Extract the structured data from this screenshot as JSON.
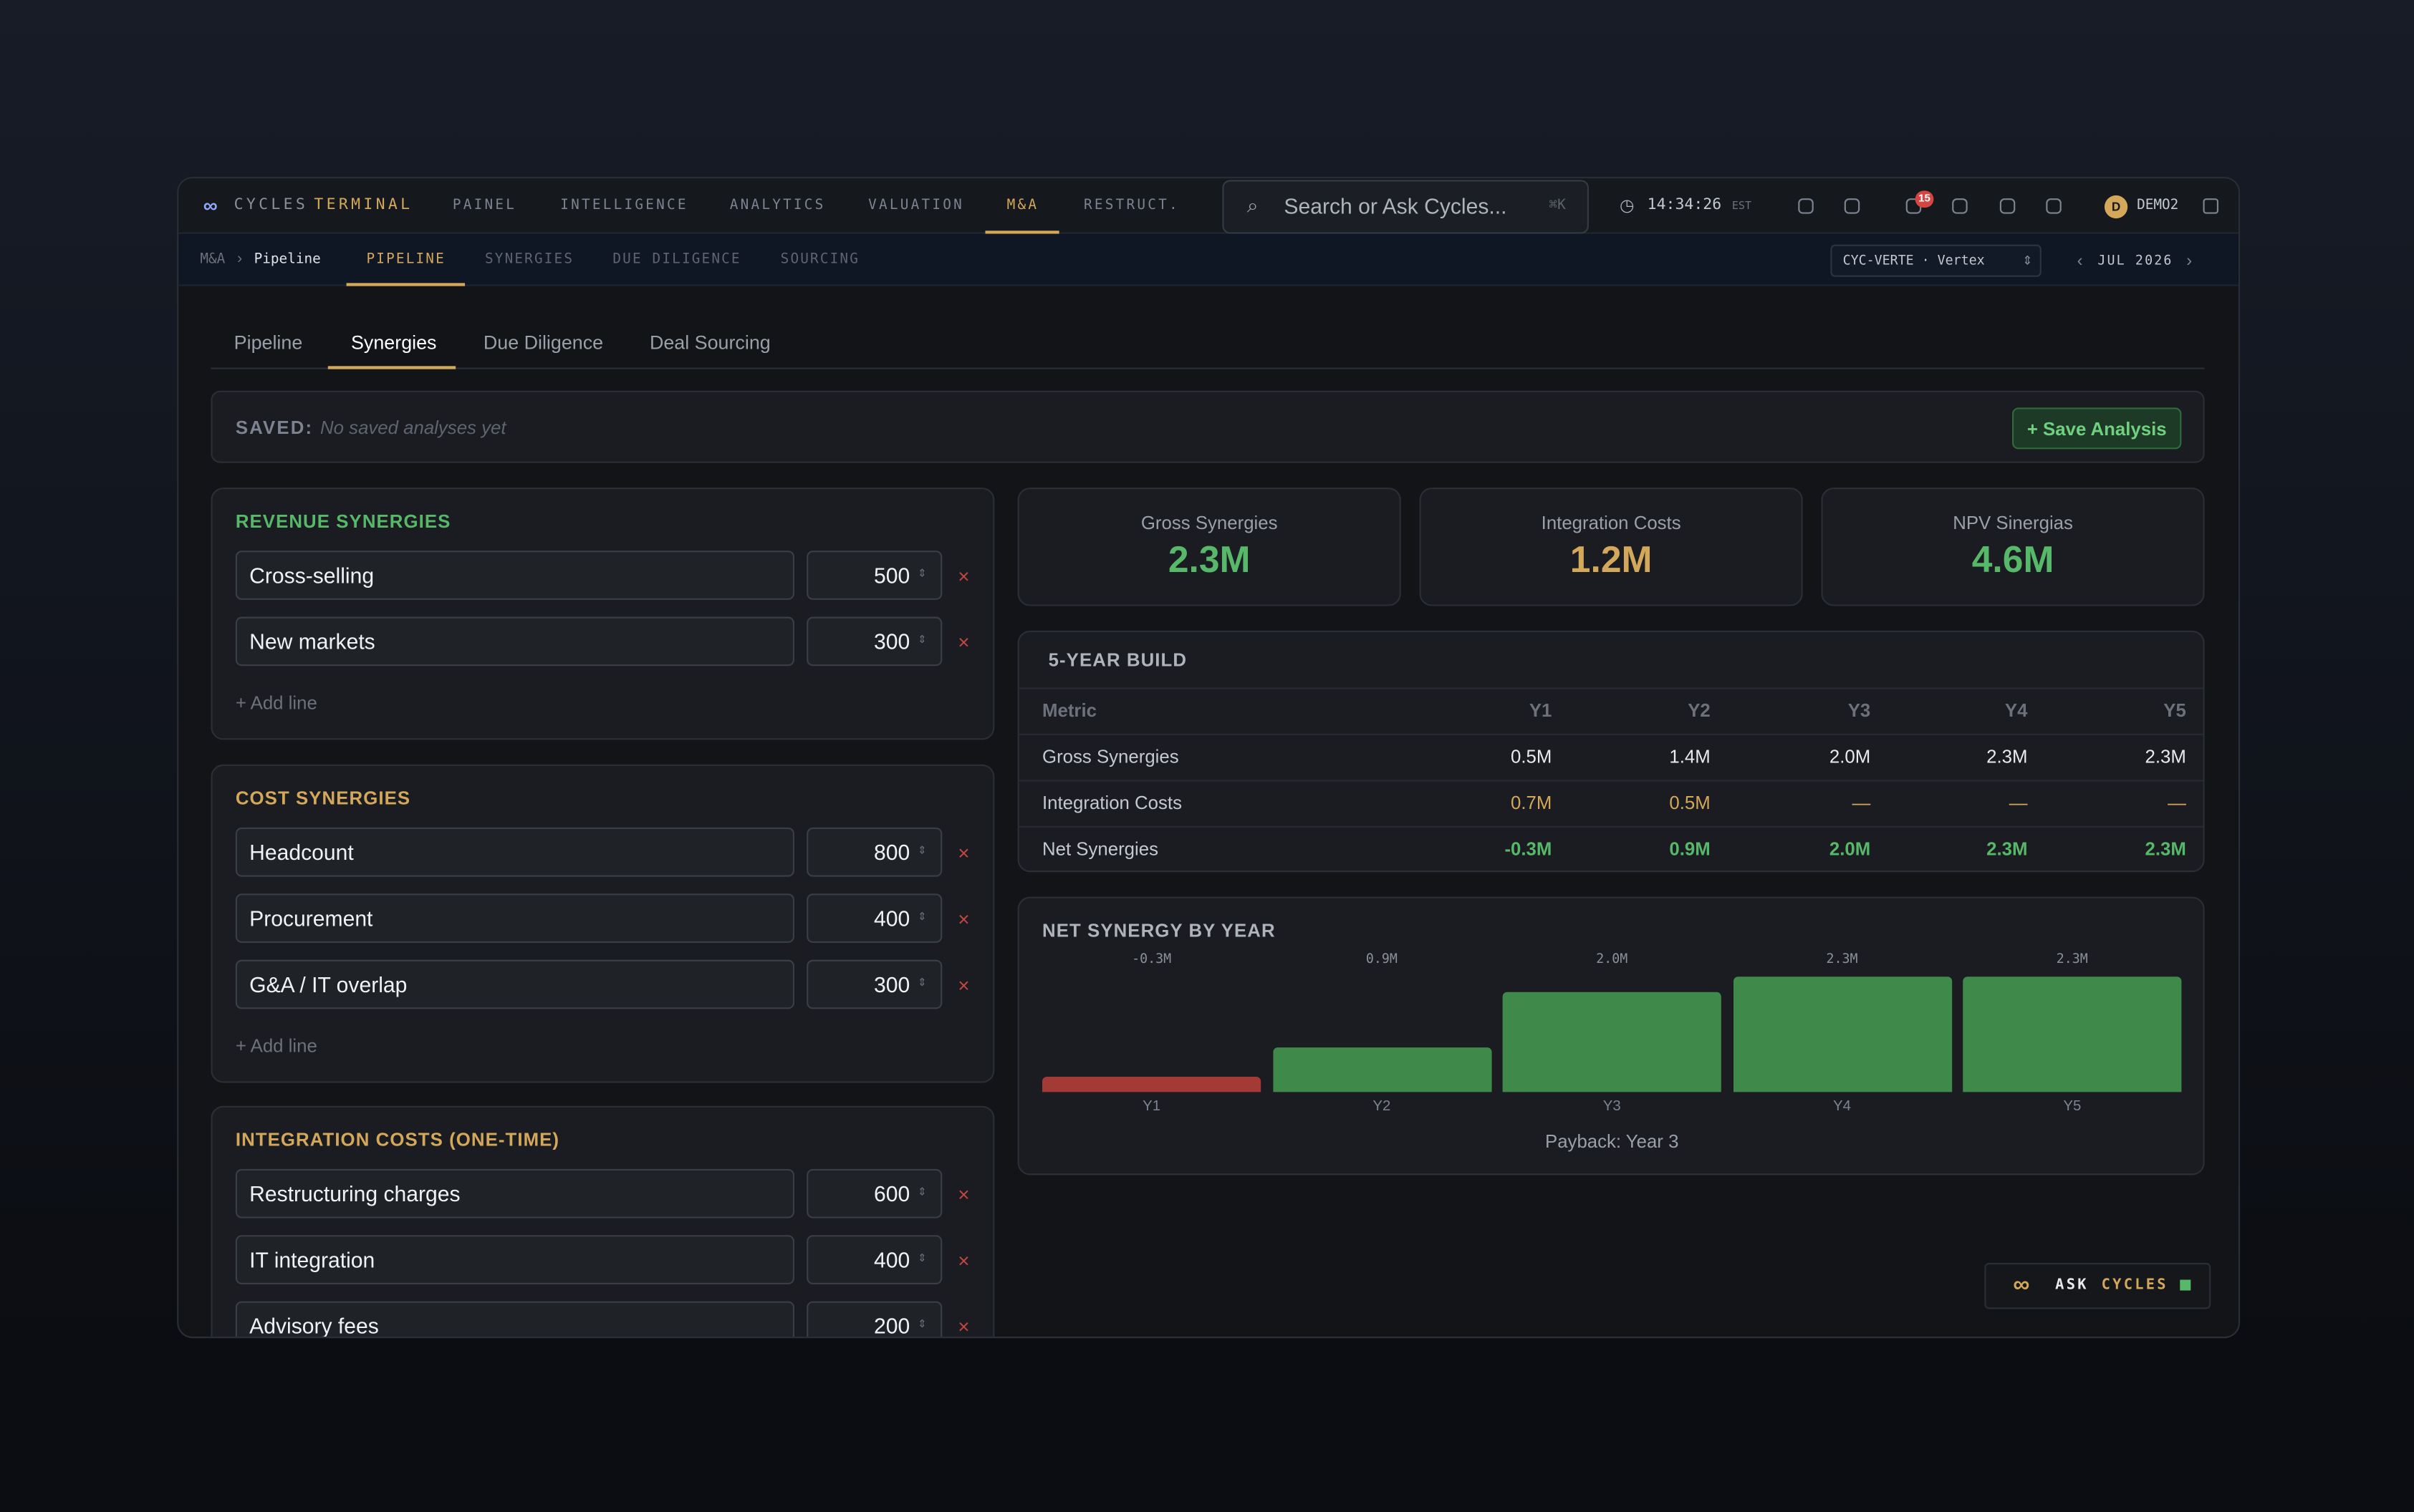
{
  "brand": {
    "name": "CYCLES",
    "accent": "TERMINAL"
  },
  "nav_items": [
    "PAINEL",
    "INTELLIGENCE",
    "ANALYTICS",
    "VALUATION",
    "M&A",
    "RESTRUCT."
  ],
  "nav_active": 4,
  "search": {
    "placeholder": "Search or Ask Cycles...",
    "shortcut": "⌘K"
  },
  "clock": {
    "time": "14:34:26",
    "zone": "EST"
  },
  "notifications": 15,
  "user": {
    "initial": "D",
    "name": "DEMO2"
  },
  "breadcrumb": [
    "M&A",
    "Pipeline"
  ],
  "sub_tabs": [
    "PIPELINE",
    "SYNERGIES",
    "DUE DILIGENCE",
    "SOURCING"
  ],
  "sub_active": 0,
  "entity": "CYC-VERTE · Vertex",
  "period": "JUL 2026",
  "tabs": [
    "Pipeline",
    "Synergies",
    "Due Diligence",
    "Deal Sourcing"
  ],
  "tab_active": 1,
  "saved": {
    "label": "SAVED:",
    "empty": "No saved analyses yet",
    "button": "+ Save Analysis"
  },
  "sections": [
    {
      "title": "REVENUE SYNERGIES",
      "color": "#56b868",
      "lines": [
        {
          "name": "Cross-selling",
          "amount": 500
        },
        {
          "name": "New markets",
          "amount": 300
        }
      ],
      "add": "+ Add line"
    },
    {
      "title": "COST SYNERGIES",
      "color": "#d4a85a",
      "lines": [
        {
          "name": "Headcount",
          "amount": 800
        },
        {
          "name": "Procurement",
          "amount": 400
        },
        {
          "name": "G&A / IT overlap",
          "amount": 300
        }
      ],
      "add": "+ Add line"
    },
    {
      "title": "INTEGRATION COSTS (ONE-TIME)",
      "color": "#d4a85a",
      "lines": [
        {
          "name": "Restructuring charges",
          "amount": 600
        },
        {
          "name": "IT integration",
          "amount": 400
        },
        {
          "name": "Advisory fees",
          "amount": 200
        }
      ]
    }
  ],
  "kpis": [
    {
      "label": "Gross Synergies",
      "value": "2.3M",
      "color": "#56b868"
    },
    {
      "label": "Integration Costs",
      "value": "1.2M",
      "color": "#d4a85a"
    },
    {
      "label": "NPV Sinergias",
      "value": "4.6M",
      "color": "#56b868"
    }
  ],
  "build_table": {
    "title": "5-YEAR BUILD",
    "columns": [
      "Metric",
      "Y1",
      "Y2",
      "Y3",
      "Y4",
      "Y5"
    ],
    "rows": [
      [
        "Gross Synergies",
        "0.5M",
        "1.4M",
        "2.0M",
        "2.3M",
        "2.3M"
      ],
      [
        "Integration Costs",
        "0.7M",
        "0.5M",
        "—",
        "—",
        "—"
      ],
      [
        "Net Synergies",
        "-0.3M",
        "0.9M",
        "2.0M",
        "2.3M",
        "2.3M"
      ]
    ],
    "row_colors": [
      "#e8eaee",
      "#d4a85a",
      "#56b868"
    ]
  },
  "chart_data": {
    "type": "bar",
    "title": "NET SYNERGY BY YEAR",
    "categories": [
      "Y1",
      "Y2",
      "Y3",
      "Y4",
      "Y5"
    ],
    "values": [
      -0.3,
      0.9,
      2.0,
      2.3,
      2.3
    ],
    "value_labels": [
      "-0.3M",
      "0.9M",
      "2.0M",
      "2.3M",
      "2.3M"
    ],
    "positive_color": "#3f8a4a",
    "negative_color": "#a33a36",
    "note": "Payback: Year 3"
  },
  "ask": {
    "label": "ASK",
    "accent": "CYCLES"
  }
}
